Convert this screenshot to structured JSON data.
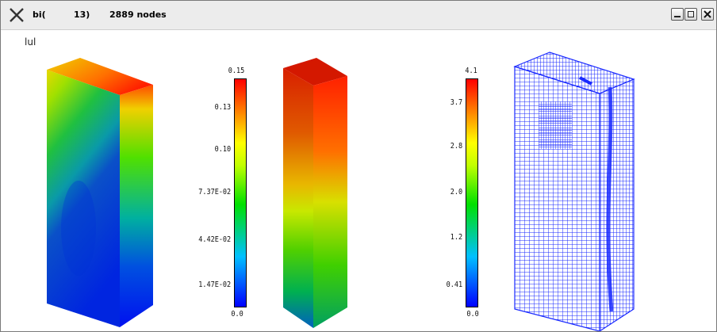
{
  "titlebar": {
    "app_label": "bi(",
    "step": "13)",
    "nodes": "2889 nodes",
    "minimize_icon": "minimize-icon",
    "maximize_icon": "maximize-icon",
    "close_icon": "close-icon"
  },
  "variable_label": "lul",
  "scale_left": {
    "ticks": [
      "0.15",
      "0.13",
      "0.10",
      "7.37E-02",
      "4.42E-02",
      "1.47E-02",
      "0.0"
    ]
  },
  "scale_right": {
    "ticks": [
      "4.1",
      "3.7",
      "2.8",
      "2.0",
      "1.2",
      "0.41",
      "0.0"
    ]
  },
  "colors": {
    "colormap": [
      "#0000ff",
      "#00c0ff",
      "#00e000",
      "#c0ff00",
      "#ffff00",
      "#ff8000",
      "#ff0000"
    ],
    "mesh": "#1a2aff"
  }
}
